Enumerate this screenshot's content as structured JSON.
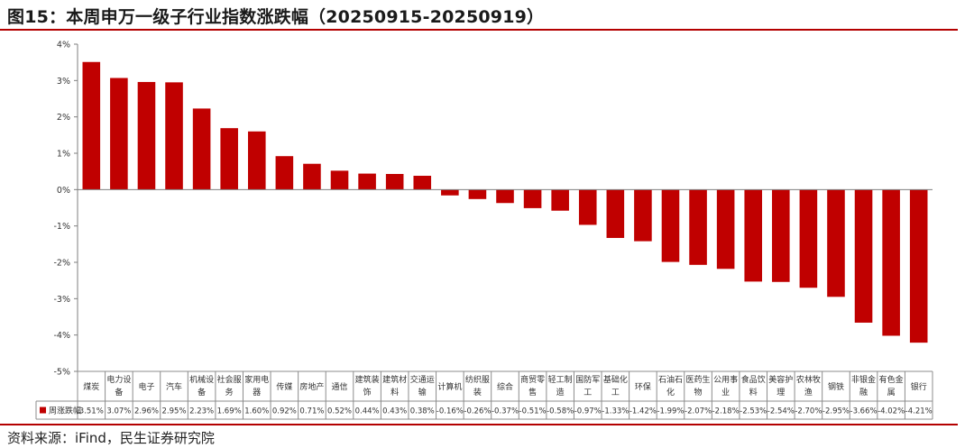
{
  "header": {
    "title": "图15：本周申万一级子行业指数涨跌幅（20250915-20250919）"
  },
  "footer": {
    "source": "资料来源：iFind，民生证券研究院"
  },
  "chart_data": {
    "type": "bar",
    "title": "",
    "xlabel": "",
    "ylabel": "",
    "ylim": [
      -5,
      4
    ],
    "yticks": [
      4,
      3,
      2,
      1,
      0,
      -1,
      -2,
      -3,
      -4,
      -5
    ],
    "ytick_labels": [
      "4%",
      "3%",
      "2%",
      "1%",
      "0%",
      "-1%",
      "-2%",
      "-3%",
      "-4%",
      "-5%"
    ],
    "grid": false,
    "legend_position": "table-left",
    "bar_color": "#c00000",
    "categories": [
      [
        "煤炭"
      ],
      [
        "电力设",
        "备"
      ],
      [
        "电子"
      ],
      [
        "汽车"
      ],
      [
        "机械设",
        "备"
      ],
      [
        "社会服",
        "务"
      ],
      [
        "家用电",
        "器"
      ],
      [
        "传媒"
      ],
      [
        "房地产"
      ],
      [
        "通信"
      ],
      [
        "建筑装",
        "饰"
      ],
      [
        "建筑材",
        "料"
      ],
      [
        "交通运",
        "输"
      ],
      [
        "计算机"
      ],
      [
        "纺织服",
        "装"
      ],
      [
        "综合"
      ],
      [
        "商贸零",
        "售"
      ],
      [
        "轻工制",
        "造"
      ],
      [
        "国防军",
        "工"
      ],
      [
        "基础化",
        "工"
      ],
      [
        "环保"
      ],
      [
        "石油石",
        "化"
      ],
      [
        "医药生",
        "物"
      ],
      [
        "公用事",
        "业"
      ],
      [
        "食品饮",
        "料"
      ],
      [
        "美容护",
        "理"
      ],
      [
        "农林牧",
        "渔"
      ],
      [
        "钢铁"
      ],
      [
        "非银金",
        "融"
      ],
      [
        "有色金",
        "属"
      ],
      [
        "银行"
      ]
    ],
    "series": [
      {
        "name": "周涨跌幅",
        "values": [
          3.51,
          3.07,
          2.96,
          2.95,
          2.23,
          1.69,
          1.6,
          0.92,
          0.71,
          0.52,
          0.44,
          0.43,
          0.38,
          -0.16,
          -0.26,
          -0.37,
          -0.51,
          -0.58,
          -0.97,
          -1.33,
          -1.42,
          -1.99,
          -2.07,
          -2.18,
          -2.53,
          -2.54,
          -2.7,
          -2.95,
          -3.66,
          -4.02,
          -4.21
        ],
        "value_labels": [
          "3.51%",
          "3.07%",
          "2.96%",
          "2.95%",
          "2.23%",
          "1.69%",
          "1.60%",
          "0.92%",
          "0.71%",
          "0.52%",
          "0.44%",
          "0.43%",
          "0.38%",
          "-0.16%",
          "-0.26%",
          "-0.37%",
          "-0.51%",
          "-0.58%",
          "-0.97%",
          "-1.33%",
          "-1.42%",
          "-1.99%",
          "-2.07%",
          "-2.18%",
          "-2.53%",
          "-2.54%",
          "-2.70%",
          "-2.95%",
          "-3.66%",
          "-4.02%",
          "-4.21%"
        ]
      }
    ]
  }
}
